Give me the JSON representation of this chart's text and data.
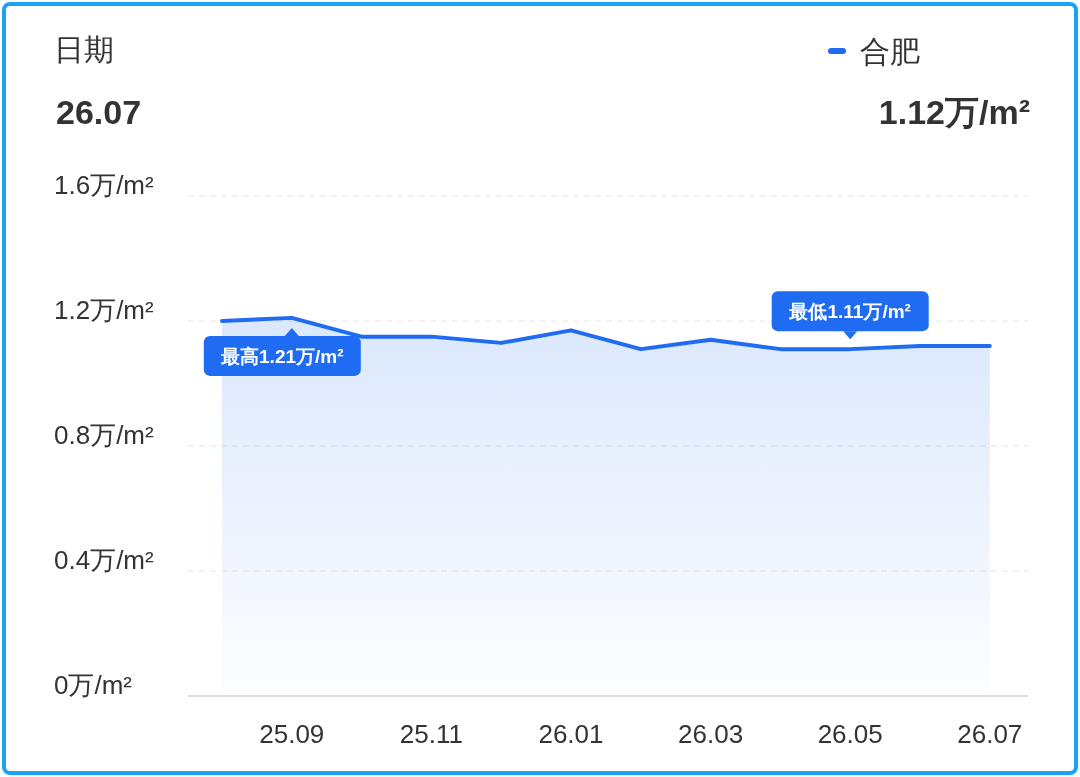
{
  "chart_data": {
    "type": "area",
    "categories": [
      null,
      "25.09",
      null,
      "25.11",
      null,
      "26.01",
      null,
      "26.03",
      null,
      "26.05",
      null,
      "26.07"
    ],
    "series": [
      {
        "name": "合肥",
        "color": "#1f6bf2",
        "values": [
          1.2,
          1.21,
          1.15,
          1.15,
          1.13,
          1.17,
          1.11,
          1.14,
          1.11,
          1.11,
          1.12,
          1.12
        ]
      }
    ],
    "ylim": [
      0,
      1.6
    ],
    "yticks": [
      {
        "value": 0,
        "label": "0万/m²"
      },
      {
        "value": 0.4,
        "label": "0.4万/m²"
      },
      {
        "value": 0.8,
        "label": "0.8万/m²"
      },
      {
        "value": 1.2,
        "label": "1.2万/m²"
      },
      {
        "value": 1.6,
        "label": "1.6万/m²"
      }
    ],
    "grid": "y",
    "legend": "top right",
    "annotations": [
      "日期",
      "26.07",
      "1.12万/m²",
      {
        "text": "最高1.21万/m²",
        "x": "25.09",
        "y": 1.21
      },
      {
        "text": "最低1.11万/m²",
        "x": "26.05",
        "y": 1.11
      }
    ]
  }
}
